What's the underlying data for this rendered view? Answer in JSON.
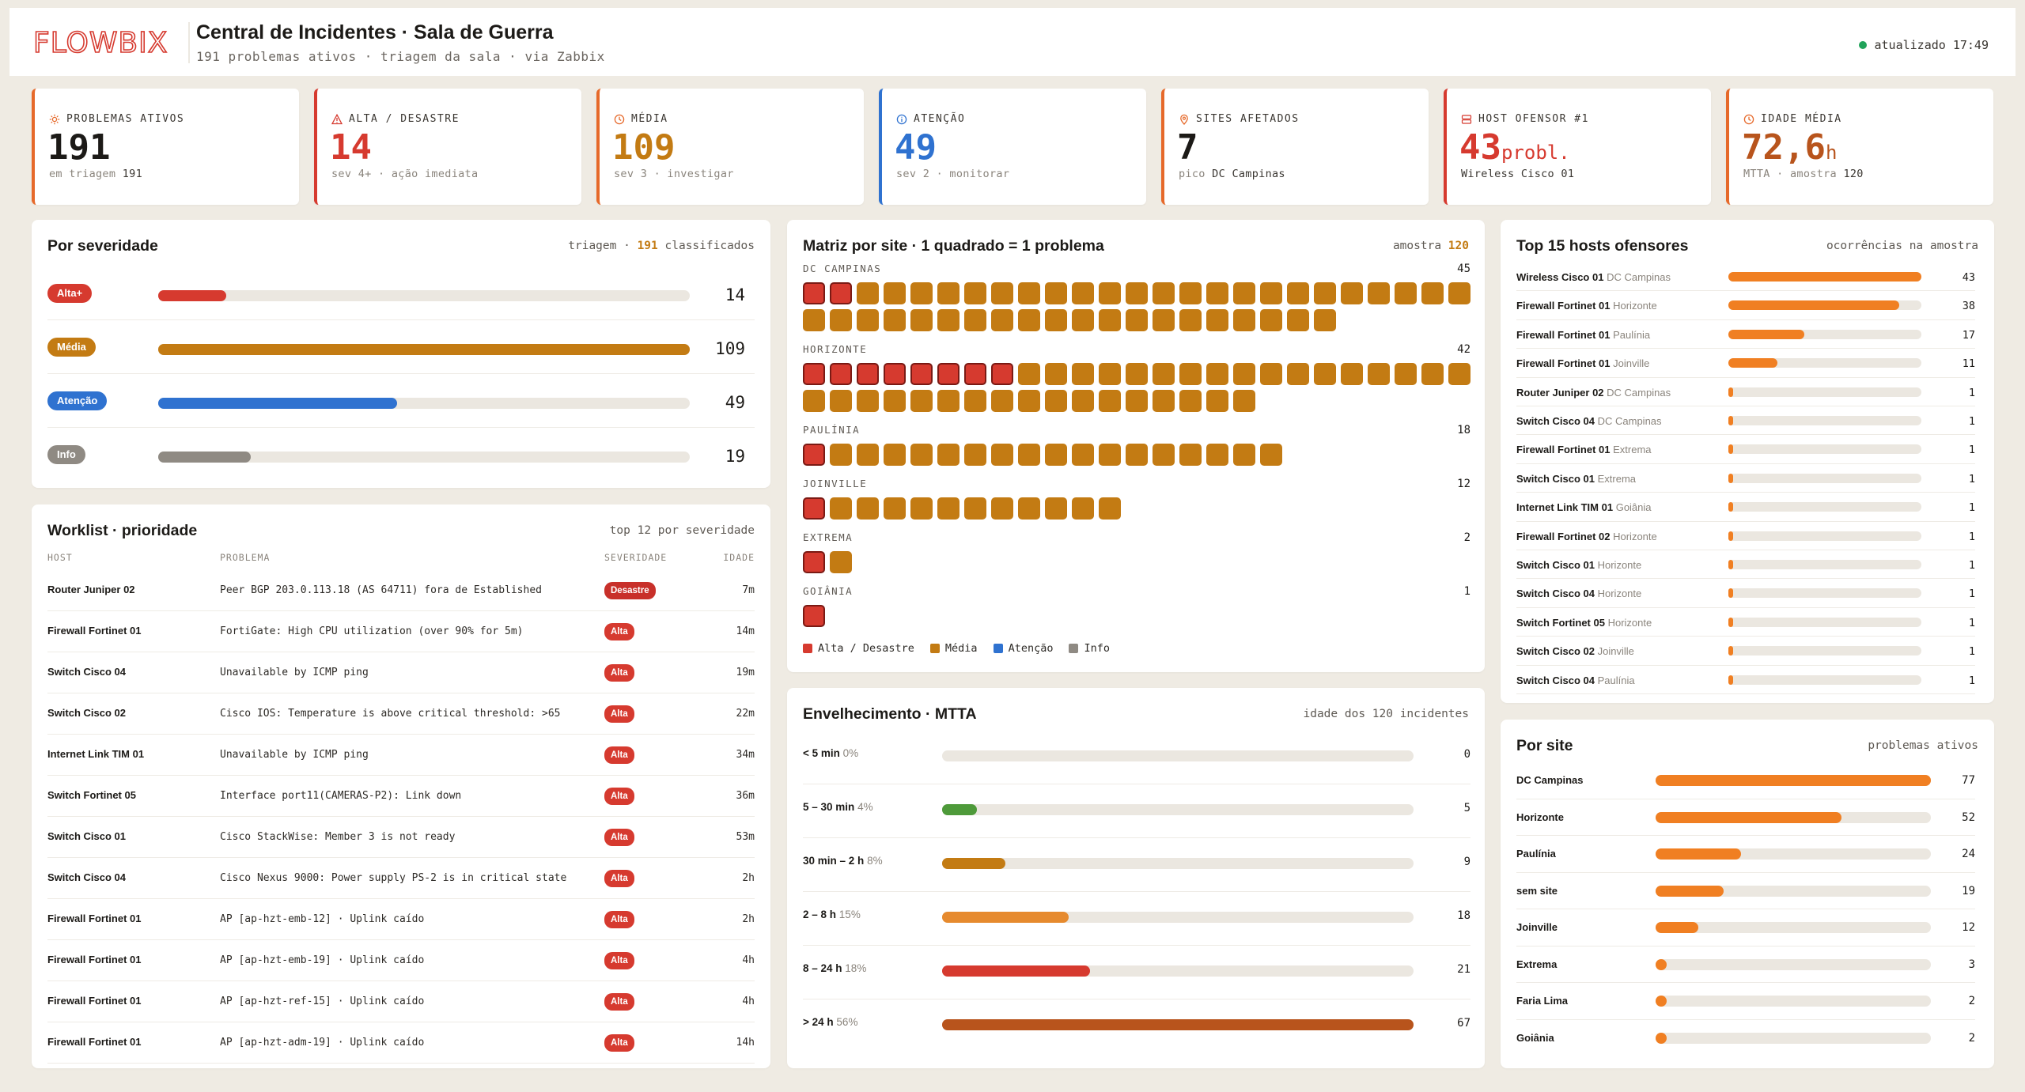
{
  "header": {
    "title": "Central de Incidentes · Sala de Guerra",
    "subtitle": "191 problemas ativos · triagem da sala · via Zabbix",
    "updated": "atualizado 17:49",
    "logo_text": "FLOWBIX"
  },
  "colors": {
    "alta": "#d63a2f",
    "media": "#c37b13",
    "atencao": "#2f72d0",
    "info": "#8f8a83",
    "accent": "#f07f22"
  },
  "kpis": [
    {
      "icon": "sun-icon",
      "label": "Problemas ativos",
      "value": "191",
      "unit": "",
      "sub": "em triagem",
      "sub_strong": "191",
      "color": "#1c1a17",
      "border": "#e6692a"
    },
    {
      "icon": "warning-icon",
      "label": "Alta / Desastre",
      "value": "14",
      "unit": "",
      "sub": "sev 4+ · ação imediata",
      "sub_strong": "",
      "color": "#d63a2f",
      "border": "#d63a2f"
    },
    {
      "icon": "clock-icon",
      "label": "Média",
      "value": "109",
      "unit": "",
      "sub": "sev 3 · investigar",
      "sub_strong": "",
      "color": "#c37b13",
      "border": "#e6692a"
    },
    {
      "icon": "info-icon",
      "label": "Atenção",
      "value": "49",
      "unit": "",
      "sub": "sev 2 · monitorar",
      "sub_strong": "",
      "color": "#2f72d0",
      "border": "#2f72d0"
    },
    {
      "icon": "pin-icon",
      "label": "Sites afetados",
      "value": "7",
      "unit": "",
      "sub": "pico",
      "sub_strong": "DC Campinas",
      "color": "#1c1a17",
      "border": "#e6692a"
    },
    {
      "icon": "server-icon",
      "label": "Host ofensor #1",
      "value": "43",
      "unit": "probl.",
      "sub": "",
      "sub_strong": "Wireless Cisco 01",
      "color": "#d63a2f",
      "border": "#d63a2f"
    },
    {
      "icon": "clock-icon",
      "label": "Idade média",
      "value": "72,6",
      "unit": "h",
      "sub": "MTTA · amostra",
      "sub_strong": "120",
      "color": "#b8541c",
      "border": "#e6692a"
    }
  ],
  "severity": {
    "title": "Por severidade",
    "meta_prefix": "triagem ·",
    "meta_count": "191",
    "meta_suffix": "classificados",
    "max": 109,
    "rows": [
      {
        "label": "Alta+",
        "value": 14,
        "color": "#d63a2f"
      },
      {
        "label": "Média",
        "value": 109,
        "color": "#c37b13"
      },
      {
        "label": "Atenção",
        "value": 49,
        "color": "#2f72d0"
      },
      {
        "label": "Info",
        "value": 19,
        "color": "#8f8a83"
      }
    ]
  },
  "worklist": {
    "title": "Worklist · prioridade",
    "meta": "top 12 por severidade",
    "columns": {
      "host": "HOST",
      "problem": "PROBLEMA",
      "severity": "SEVERIDADE",
      "age": "IDADE"
    },
    "rows": [
      {
        "host": "Router Juniper 02",
        "problem": "Peer BGP 203.0.113.18 (AS 64711) fora de Established",
        "severity": "Desastre",
        "age": "7m"
      },
      {
        "host": "Firewall Fortinet 01",
        "problem": "FortiGate: High CPU utilization (over 90% for 5m)",
        "severity": "Alta",
        "age": "14m"
      },
      {
        "host": "Switch Cisco 04",
        "problem": "Unavailable by ICMP ping",
        "severity": "Alta",
        "age": "19m"
      },
      {
        "host": "Switch Cisco 02",
        "problem": "Cisco IOS: Temperature is above critical threshold: >65",
        "severity": "Alta",
        "age": "22m"
      },
      {
        "host": "Internet Link TIM 01",
        "problem": "Unavailable by ICMP ping",
        "severity": "Alta",
        "age": "34m"
      },
      {
        "host": "Switch Fortinet 05",
        "problem": "Interface port11(CAMERAS-P2): Link down",
        "severity": "Alta",
        "age": "36m"
      },
      {
        "host": "Switch Cisco 01",
        "problem": "Cisco StackWise: Member 3 is not ready",
        "severity": "Alta",
        "age": "53m"
      },
      {
        "host": "Switch Cisco 04",
        "problem": "Cisco Nexus 9000: Power supply PS-2 is in critical state",
        "severity": "Alta",
        "age": "2h"
      },
      {
        "host": "Firewall Fortinet 01",
        "problem": "AP [ap-hzt-emb-12] · Uplink caído",
        "severity": "Alta",
        "age": "2h"
      },
      {
        "host": "Firewall Fortinet 01",
        "problem": "AP [ap-hzt-emb-19] · Uplink caído",
        "severity": "Alta",
        "age": "4h"
      },
      {
        "host": "Firewall Fortinet 01",
        "problem": "AP [ap-hzt-ref-15] · Uplink caído",
        "severity": "Alta",
        "age": "4h"
      },
      {
        "host": "Firewall Fortinet 01",
        "problem": "AP [ap-hzt-adm-19] · Uplink caído",
        "severity": "Alta",
        "age": "14h"
      }
    ]
  },
  "matrix": {
    "title": "Matriz por site · 1 quadrado = 1 problema",
    "meta_prefix": "amostra",
    "meta_count": "120",
    "sites": [
      {
        "name": "DC CAMPINAS",
        "count": 45,
        "alta": 2,
        "media": 43
      },
      {
        "name": "HORIZONTE",
        "count": 42,
        "alta": 8,
        "media": 34
      },
      {
        "name": "PAULÍNIA",
        "count": 18,
        "alta": 1,
        "media": 17
      },
      {
        "name": "JOINVILLE",
        "count": 12,
        "alta": 1,
        "media": 11
      },
      {
        "name": "EXTREMA",
        "count": 2,
        "alta": 1,
        "media": 1
      },
      {
        "name": "GOIÂNIA",
        "count": 1,
        "alta": 1,
        "media": 0
      }
    ],
    "legend": [
      "Alta / Desastre",
      "Média",
      "Atenção",
      "Info"
    ]
  },
  "aging": {
    "title": "Envelhecimento · MTTA",
    "meta": "idade dos 120 incidentes",
    "max": 67,
    "rows": [
      {
        "label": "< 5 min",
        "pct": "0%",
        "value": 0,
        "color": "#8f8a83"
      },
      {
        "label": "5 – 30 min",
        "pct": "4%",
        "value": 5,
        "color": "#4e9a3a"
      },
      {
        "label": "30 min – 2 h",
        "pct": "8%",
        "value": 9,
        "color": "#c37b13"
      },
      {
        "label": "2 – 8 h",
        "pct": "15%",
        "value": 18,
        "color": "#e68a2e"
      },
      {
        "label": "8 – 24 h",
        "pct": "18%",
        "value": 21,
        "color": "#d63a2f"
      },
      {
        "label": "> 24 h",
        "pct": "56%",
        "value": 67,
        "color": "#b8541c"
      }
    ]
  },
  "hosts": {
    "title": "Top 15 hosts ofensores",
    "meta": "ocorrências na amostra",
    "max": 43,
    "rows": [
      {
        "host": "Wireless Cisco 01",
        "site": "DC Campinas",
        "value": 43
      },
      {
        "host": "Firewall Fortinet 01",
        "site": "Horizonte",
        "value": 38
      },
      {
        "host": "Firewall Fortinet 01",
        "site": "Paulínia",
        "value": 17
      },
      {
        "host": "Firewall Fortinet 01",
        "site": "Joinville",
        "value": 11
      },
      {
        "host": "Router Juniper 02",
        "site": "DC Campinas",
        "value": 1
      },
      {
        "host": "Switch Cisco 04",
        "site": "DC Campinas",
        "value": 1
      },
      {
        "host": "Firewall Fortinet 01",
        "site": "Extrema",
        "value": 1
      },
      {
        "host": "Switch Cisco 01",
        "site": "Extrema",
        "value": 1
      },
      {
        "host": "Internet Link TIM 01",
        "site": "Goiânia",
        "value": 1
      },
      {
        "host": "Firewall Fortinet 02",
        "site": "Horizonte",
        "value": 1
      },
      {
        "host": "Switch Cisco 01",
        "site": "Horizonte",
        "value": 1
      },
      {
        "host": "Switch Cisco 04",
        "site": "Horizonte",
        "value": 1
      },
      {
        "host": "Switch Fortinet 05",
        "site": "Horizonte",
        "value": 1
      },
      {
        "host": "Switch Cisco 02",
        "site": "Joinville",
        "value": 1
      },
      {
        "host": "Switch Cisco 04",
        "site": "Paulínia",
        "value": 1
      }
    ]
  },
  "sites": {
    "title": "Por site",
    "meta": "problemas ativos",
    "max": 77,
    "rows": [
      {
        "name": "DC Campinas",
        "value": 77
      },
      {
        "name": "Horizonte",
        "value": 52
      },
      {
        "name": "Paulínia",
        "value": 24
      },
      {
        "name": "sem site",
        "value": 19
      },
      {
        "name": "Joinville",
        "value": 12
      },
      {
        "name": "Extrema",
        "value": 3
      },
      {
        "name": "Faria Lima",
        "value": 2
      },
      {
        "name": "Goiânia",
        "value": 2
      }
    ]
  }
}
